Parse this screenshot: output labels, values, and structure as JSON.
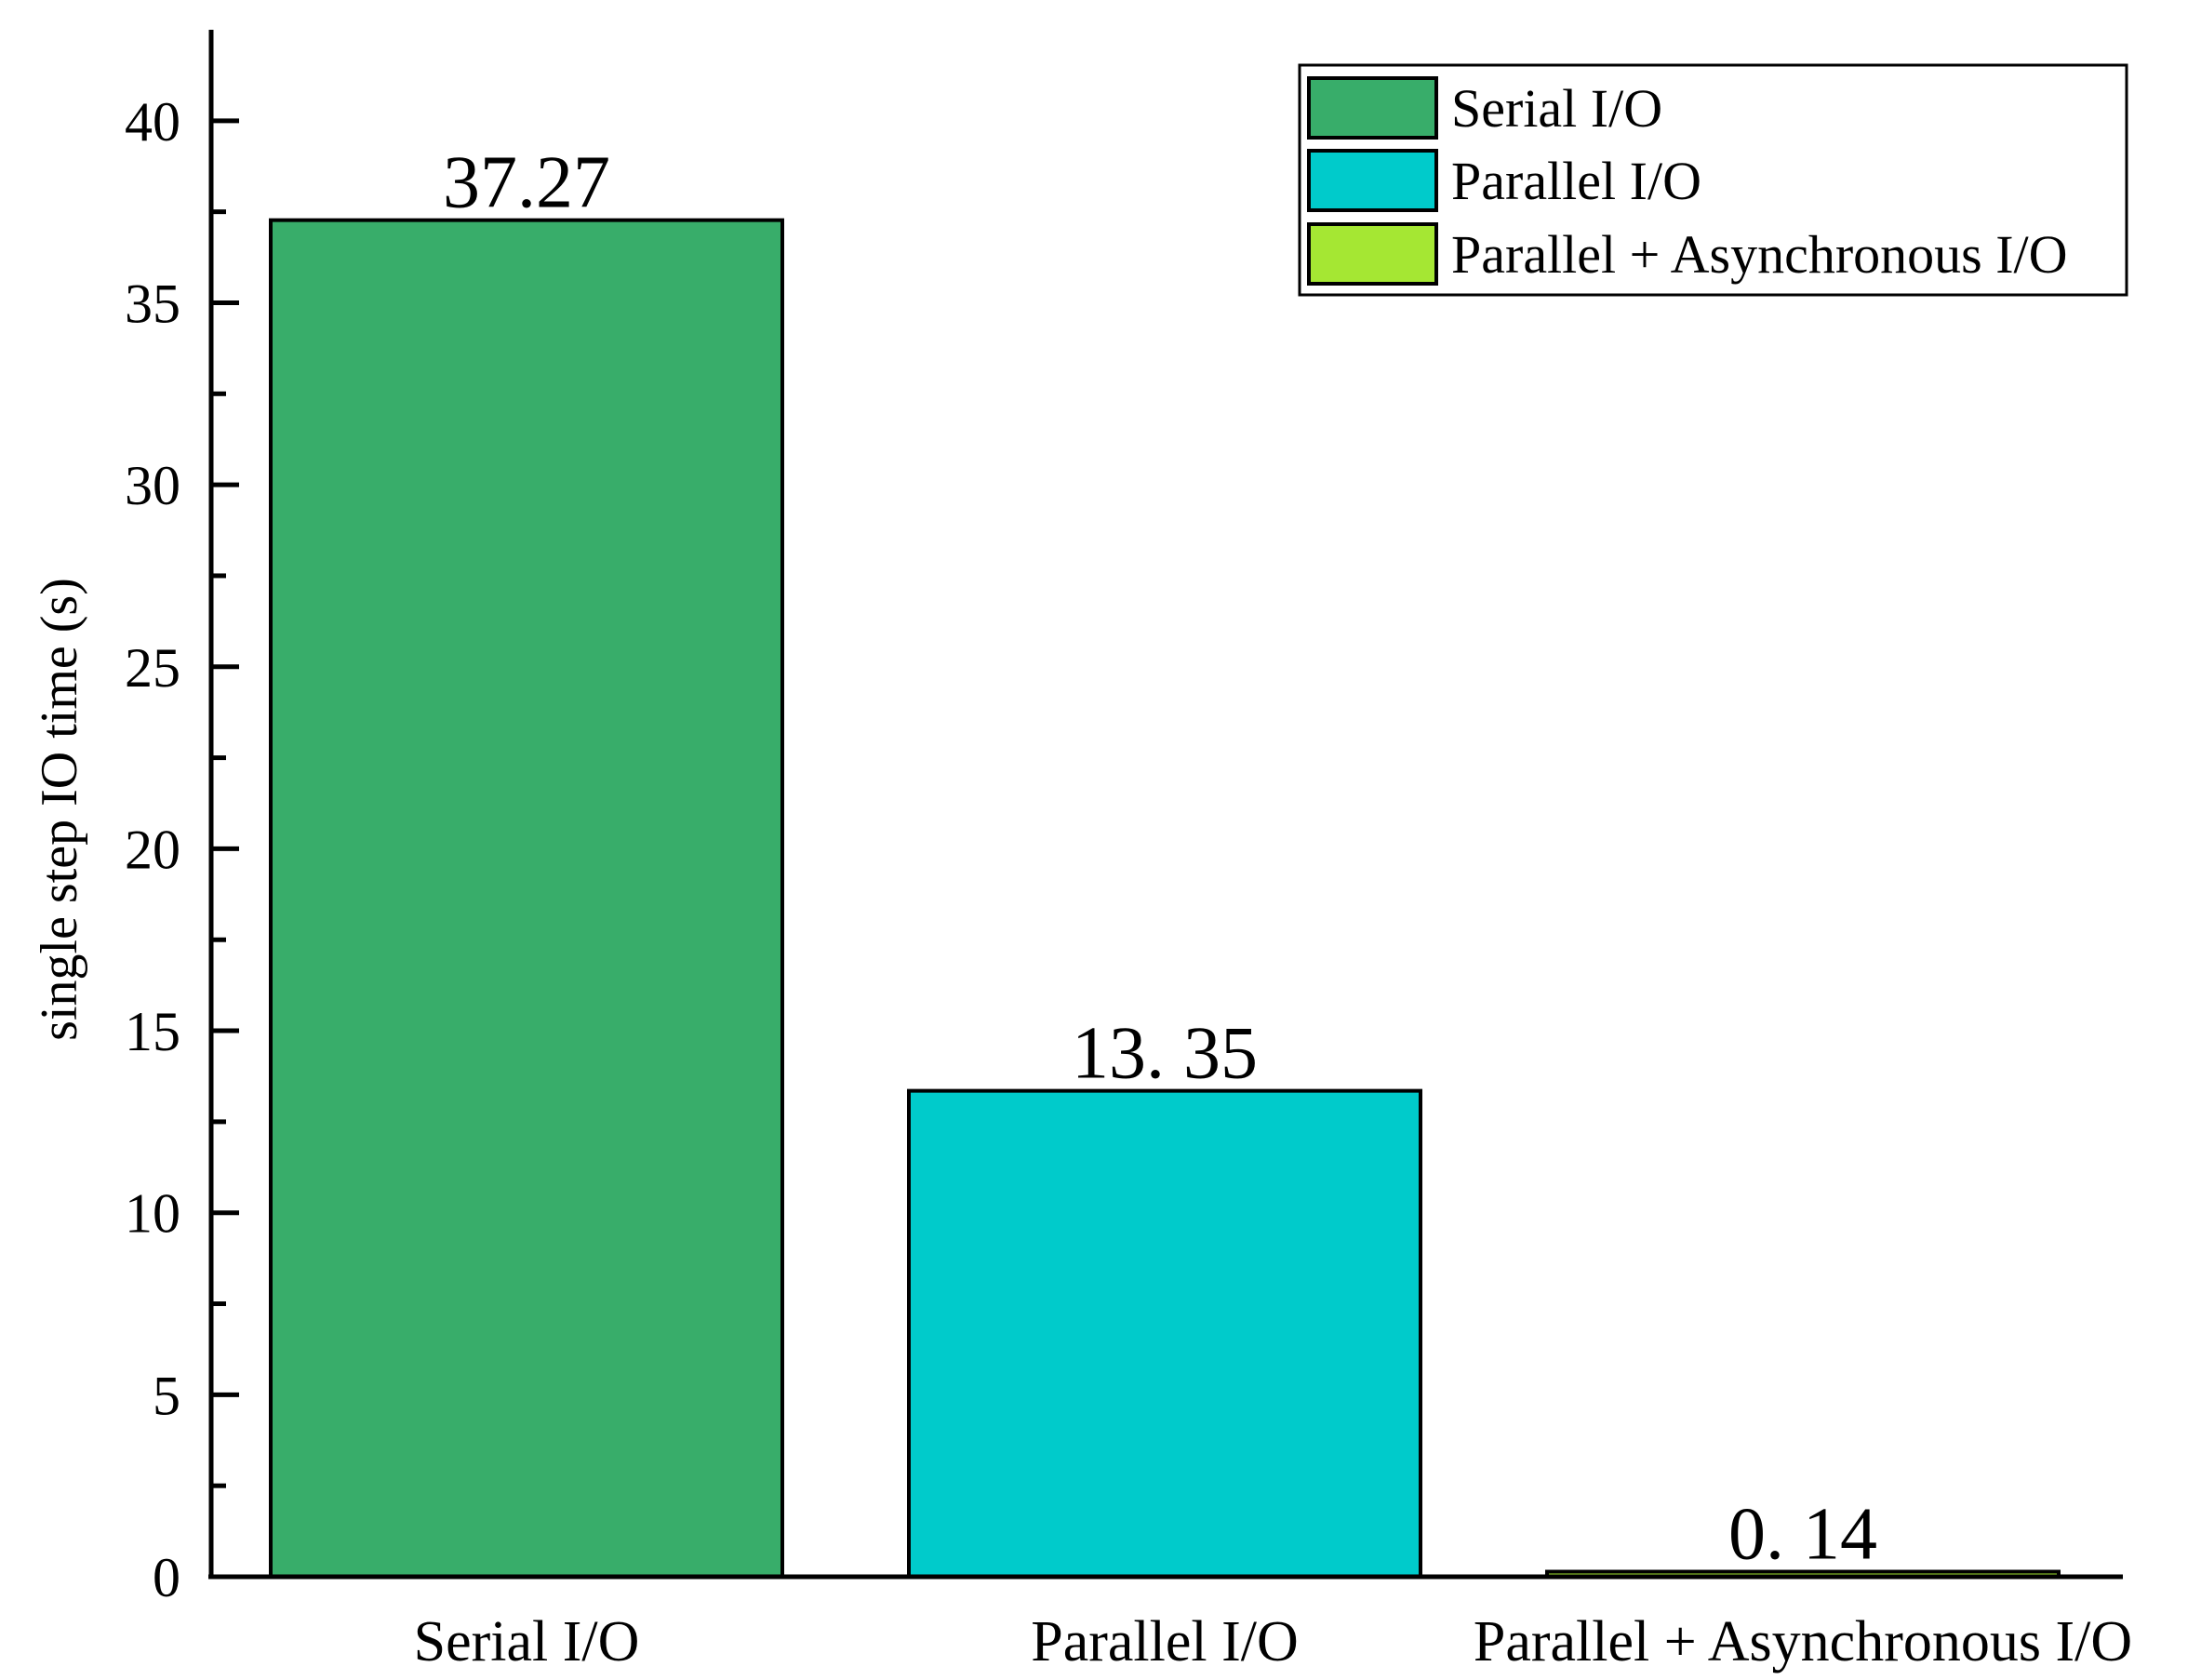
{
  "chart_data": {
    "type": "bar",
    "categories": [
      "Serial I/O",
      "Parallel I/O",
      "Parallel + Asynchronous I/O"
    ],
    "values": [
      37.27,
      13.35,
      0.14
    ],
    "data_labels": [
      "37.27",
      "13. 35",
      "0. 14"
    ],
    "colors": [
      "#38ad6a",
      "#00cbcb",
      "#a5e733"
    ],
    "title": "",
    "xlabel": "",
    "ylabel": "single step IO time (s)",
    "ylim": [
      0,
      42.5
    ],
    "yticks": [
      0,
      5,
      10,
      15,
      20,
      25,
      30,
      35,
      40
    ],
    "yticks_minor_step": 2.5,
    "grid": false,
    "legend": {
      "placement": "top-right",
      "entries": [
        "Serial I/O",
        "Parallel I/O",
        "Parallel + Asynchronous I/O"
      ]
    }
  }
}
